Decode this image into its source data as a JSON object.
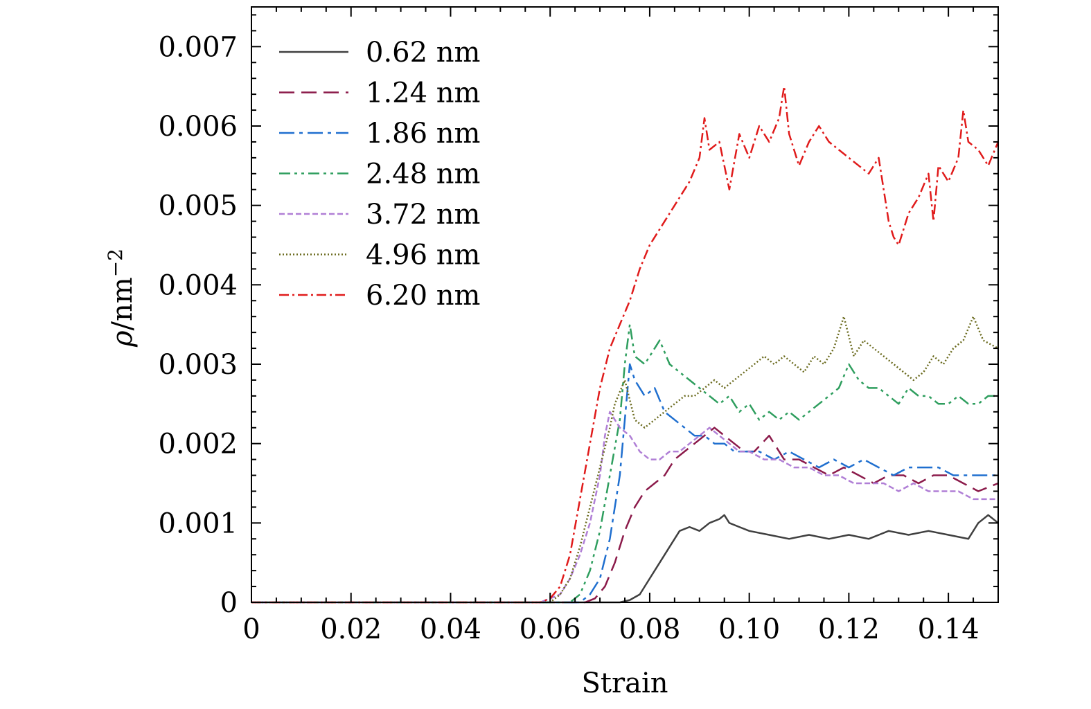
{
  "chart_data": {
    "type": "line",
    "title": "",
    "xlabel": "Strain",
    "ylabel_symbol": "ρ",
    "ylabel_unit": "/nm",
    "ylabel_exp": "−2",
    "xlim": [
      0,
      0.15
    ],
    "ylim": [
      0,
      0.0075
    ],
    "x_ticks": [
      "0",
      "0.02",
      "0.04",
      "0.06",
      "0.08",
      "0.10",
      "0.12",
      "0.14"
    ],
    "x_tick_values": [
      0,
      0.02,
      0.04,
      0.06,
      0.08,
      0.1,
      0.12,
      0.14
    ],
    "y_ticks": [
      "0",
      "0.001",
      "0.002",
      "0.003",
      "0.004",
      "0.005",
      "0.006",
      "0.007"
    ],
    "y_tick_values": [
      0,
      0.001,
      0.002,
      0.003,
      0.004,
      0.005,
      0.006,
      0.007
    ],
    "grid": false,
    "legend_position": "top-left",
    "series": [
      {
        "name": "0.62 nm",
        "color": "#404040",
        "dash": "solid",
        "x": [
          0,
          0.074,
          0.076,
          0.078,
          0.08,
          0.082,
          0.084,
          0.086,
          0.088,
          0.09,
          0.092,
          0.094,
          0.095,
          0.096,
          0.098,
          0.1,
          0.104,
          0.108,
          0.112,
          0.116,
          0.12,
          0.124,
          0.128,
          0.132,
          0.136,
          0.14,
          0.144,
          0.146,
          0.148,
          0.15
        ],
        "y": [
          0,
          0,
          3e-05,
          0.0001,
          0.0003,
          0.0005,
          0.0007,
          0.0009,
          0.00095,
          0.0009,
          0.001,
          0.00105,
          0.0011,
          0.001,
          0.00095,
          0.0009,
          0.00085,
          0.0008,
          0.00085,
          0.0008,
          0.00085,
          0.0008,
          0.0009,
          0.00085,
          0.0009,
          0.00085,
          0.0008,
          0.001,
          0.0011,
          0.001
        ]
      },
      {
        "name": "1.24 nm",
        "color": "#8b1a4a",
        "dash": "22,10",
        "x": [
          0,
          0.067,
          0.069,
          0.071,
          0.073,
          0.075,
          0.077,
          0.079,
          0.081,
          0.083,
          0.085,
          0.087,
          0.089,
          0.091,
          0.093,
          0.095,
          0.097,
          0.099,
          0.101,
          0.104,
          0.107,
          0.11,
          0.113,
          0.116,
          0.119,
          0.122,
          0.125,
          0.128,
          0.131,
          0.134,
          0.137,
          0.14,
          0.143,
          0.146,
          0.15
        ],
        "y": [
          0,
          0,
          5e-05,
          0.0002,
          0.0005,
          0.0009,
          0.0012,
          0.0014,
          0.0015,
          0.0016,
          0.0018,
          0.0019,
          0.002,
          0.0021,
          0.0022,
          0.0021,
          0.002,
          0.0019,
          0.0019,
          0.0021,
          0.0018,
          0.0018,
          0.0017,
          0.0016,
          0.0017,
          0.0016,
          0.0015,
          0.0016,
          0.0016,
          0.0015,
          0.0016,
          0.0016,
          0.0015,
          0.0014,
          0.0015
        ]
      },
      {
        "name": "1.86 nm",
        "color": "#1f6fcf",
        "dash": "22,7,5,7",
        "x": [
          0,
          0.066,
          0.068,
          0.07,
          0.072,
          0.074,
          0.075,
          0.076,
          0.077,
          0.079,
          0.081,
          0.083,
          0.085,
          0.087,
          0.089,
          0.091,
          0.093,
          0.095,
          0.097,
          0.099,
          0.102,
          0.105,
          0.108,
          0.111,
          0.114,
          0.117,
          0.12,
          0.123,
          0.126,
          0.129,
          0.132,
          0.135,
          0.138,
          0.141,
          0.144,
          0.147,
          0.15
        ],
        "y": [
          0,
          0,
          0.0001,
          0.0003,
          0.0008,
          0.0016,
          0.0023,
          0.003,
          0.0028,
          0.0026,
          0.0027,
          0.0024,
          0.0023,
          0.0022,
          0.0021,
          0.0021,
          0.002,
          0.002,
          0.0019,
          0.0019,
          0.0019,
          0.0018,
          0.0019,
          0.0018,
          0.0017,
          0.0018,
          0.0017,
          0.0018,
          0.0017,
          0.0016,
          0.0017,
          0.0017,
          0.0017,
          0.0016,
          0.0016,
          0.0016,
          0.0016
        ]
      },
      {
        "name": "2.48 nm",
        "color": "#2e9e5e",
        "dash": "16,6,4,6,4,6",
        "x": [
          0,
          0.064,
          0.066,
          0.068,
          0.07,
          0.072,
          0.074,
          0.075,
          0.076,
          0.077,
          0.079,
          0.081,
          0.082,
          0.084,
          0.086,
          0.088,
          0.09,
          0.092,
          0.094,
          0.096,
          0.098,
          0.1,
          0.102,
          0.104,
          0.106,
          0.108,
          0.11,
          0.112,
          0.114,
          0.116,
          0.118,
          0.12,
          0.122,
          0.124,
          0.126,
          0.128,
          0.13,
          0.132,
          0.134,
          0.136,
          0.138,
          0.14,
          0.142,
          0.144,
          0.146,
          0.148,
          0.15
        ],
        "y": [
          0,
          0,
          0.0001,
          0.0004,
          0.0009,
          0.0016,
          0.0023,
          0.003,
          0.0035,
          0.0031,
          0.003,
          0.0032,
          0.0033,
          0.003,
          0.0029,
          0.0028,
          0.0027,
          0.0026,
          0.0025,
          0.0026,
          0.0024,
          0.0025,
          0.0023,
          0.0024,
          0.0023,
          0.0024,
          0.0023,
          0.0024,
          0.0025,
          0.0026,
          0.0027,
          0.003,
          0.0028,
          0.0027,
          0.0027,
          0.0026,
          0.0025,
          0.0027,
          0.0026,
          0.0026,
          0.0025,
          0.0025,
          0.0026,
          0.0025,
          0.0025,
          0.0026,
          0.0026
        ]
      },
      {
        "name": "3.72 nm",
        "color": "#b07fd6",
        "dash": "8,4",
        "x": [
          0,
          0.058,
          0.06,
          0.062,
          0.064,
          0.066,
          0.068,
          0.07,
          0.071,
          0.072,
          0.074,
          0.076,
          0.078,
          0.08,
          0.082,
          0.084,
          0.086,
          0.088,
          0.09,
          0.092,
          0.094,
          0.096,
          0.098,
          0.1,
          0.103,
          0.106,
          0.109,
          0.112,
          0.115,
          0.118,
          0.121,
          0.124,
          0.127,
          0.13,
          0.133,
          0.136,
          0.139,
          0.142,
          0.145,
          0.148,
          0.15
        ],
        "y": [
          0,
          0,
          5e-05,
          0.0001,
          0.0003,
          0.0006,
          0.001,
          0.0016,
          0.0021,
          0.0024,
          0.0022,
          0.0021,
          0.0019,
          0.0018,
          0.0018,
          0.0019,
          0.0019,
          0.002,
          0.0021,
          0.0022,
          0.0021,
          0.002,
          0.0019,
          0.0019,
          0.0018,
          0.0018,
          0.0017,
          0.0017,
          0.0016,
          0.0016,
          0.0015,
          0.0015,
          0.0015,
          0.0014,
          0.0015,
          0.0014,
          0.0014,
          0.0014,
          0.0013,
          0.0013,
          0.0013
        ]
      },
      {
        "name": "4.96 nm",
        "color": "#6b6b1f",
        "dash": "2,3",
        "x": [
          0,
          0.06,
          0.062,
          0.064,
          0.066,
          0.068,
          0.07,
          0.072,
          0.073,
          0.075,
          0.077,
          0.079,
          0.081,
          0.083,
          0.085,
          0.087,
          0.089,
          0.091,
          0.093,
          0.095,
          0.097,
          0.099,
          0.101,
          0.103,
          0.105,
          0.107,
          0.109,
          0.111,
          0.113,
          0.115,
          0.117,
          0.119,
          0.121,
          0.123,
          0.125,
          0.127,
          0.129,
          0.131,
          0.133,
          0.135,
          0.137,
          0.139,
          0.141,
          0.143,
          0.145,
          0.147,
          0.15
        ],
        "y": [
          0,
          0,
          0.0001,
          0.0003,
          0.0007,
          0.0012,
          0.0017,
          0.0022,
          0.0025,
          0.0028,
          0.0023,
          0.0022,
          0.0023,
          0.0024,
          0.0025,
          0.0026,
          0.0026,
          0.0027,
          0.0028,
          0.0027,
          0.0028,
          0.0029,
          0.003,
          0.0031,
          0.003,
          0.0031,
          0.003,
          0.0029,
          0.0031,
          0.003,
          0.0032,
          0.0036,
          0.0031,
          0.0033,
          0.0032,
          0.0031,
          0.003,
          0.0029,
          0.0028,
          0.0029,
          0.0031,
          0.003,
          0.0032,
          0.0033,
          0.0036,
          0.0033,
          0.0032
        ]
      },
      {
        "name": "6.20 nm",
        "color": "#e01b1b",
        "dash": "14,5,3,5",
        "x": [
          0,
          0.058,
          0.06,
          0.062,
          0.064,
          0.066,
          0.068,
          0.07,
          0.072,
          0.074,
          0.076,
          0.078,
          0.08,
          0.082,
          0.084,
          0.086,
          0.088,
          0.09,
          0.091,
          0.092,
          0.094,
          0.096,
          0.098,
          0.1,
          0.102,
          0.104,
          0.106,
          0.107,
          0.108,
          0.11,
          0.112,
          0.114,
          0.116,
          0.118,
          0.12,
          0.122,
          0.124,
          0.126,
          0.128,
          0.129,
          0.13,
          0.132,
          0.134,
          0.136,
          0.137,
          0.138,
          0.14,
          0.142,
          0.143,
          0.144,
          0.146,
          0.148,
          0.15
        ],
        "y": [
          0,
          0,
          5e-05,
          0.0002,
          0.0006,
          0.0013,
          0.002,
          0.0027,
          0.0032,
          0.0035,
          0.0038,
          0.0042,
          0.0045,
          0.0047,
          0.0049,
          0.0051,
          0.0053,
          0.0056,
          0.0061,
          0.0057,
          0.0058,
          0.0052,
          0.0059,
          0.0056,
          0.006,
          0.0058,
          0.0061,
          0.0065,
          0.0059,
          0.0055,
          0.0058,
          0.006,
          0.0058,
          0.0057,
          0.0056,
          0.0055,
          0.0054,
          0.0056,
          0.0048,
          0.0046,
          0.0045,
          0.0049,
          0.0051,
          0.0054,
          0.0048,
          0.0055,
          0.0053,
          0.0056,
          0.0062,
          0.0058,
          0.0057,
          0.0055,
          0.0058
        ]
      }
    ]
  }
}
